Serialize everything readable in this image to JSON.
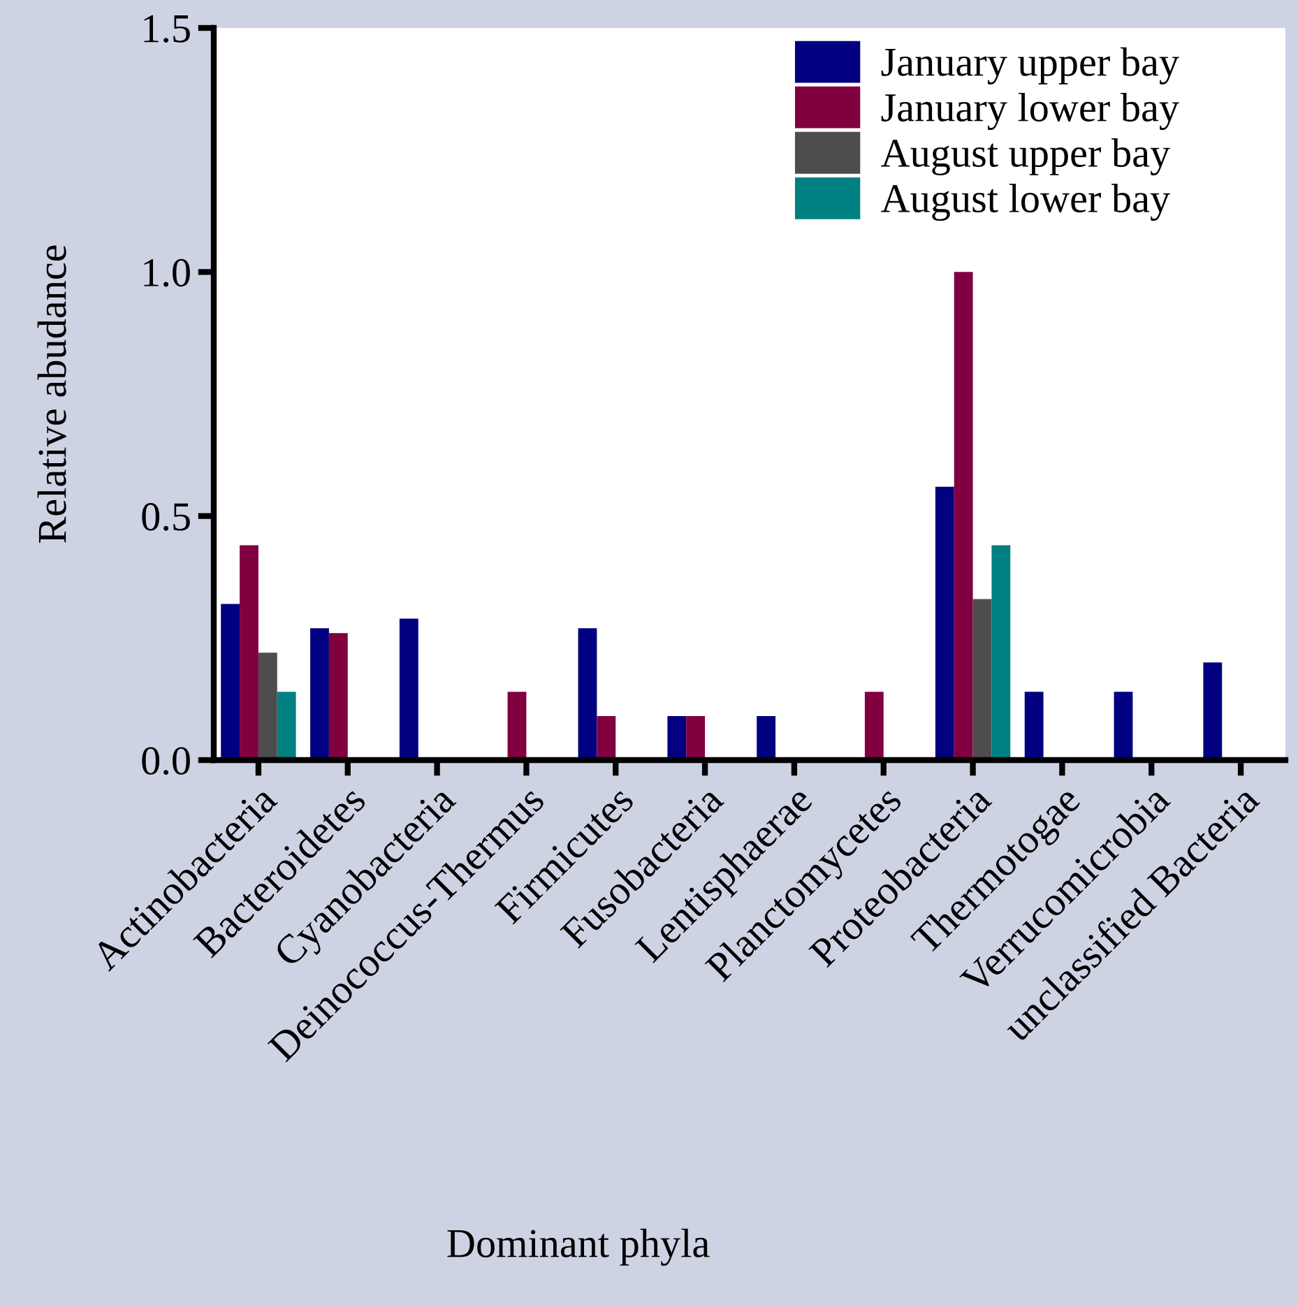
{
  "chart_data": {
    "type": "bar",
    "xlabel": "Dominant phyla",
    "ylabel": "Relative abudance",
    "categories": [
      "Actinobacteria",
      "Bacteroidetes",
      "Cyanobacteria",
      "Deinococcus-Thermus",
      "Firmicutes",
      "Fusobacteria",
      "Lentisphaerae",
      "Planctomycetes",
      "Proteobacteria",
      "Thermotogae",
      "Verrucomicrobia",
      "unclassified Bacteria"
    ],
    "series": [
      {
        "name": "January upper bay",
        "color": "#000080",
        "values": [
          0.32,
          0.27,
          0.29,
          null,
          0.27,
          0.09,
          0.09,
          null,
          0.56,
          0.14,
          0.14,
          0.2
        ]
      },
      {
        "name": "January lower bay",
        "color": "#800040",
        "values": [
          0.44,
          0.26,
          null,
          0.14,
          0.09,
          0.09,
          null,
          0.14,
          1.0,
          null,
          null,
          null
        ]
      },
      {
        "name": "August upper bay",
        "color": "#4d4d4d",
        "values": [
          0.22,
          null,
          null,
          null,
          null,
          null,
          null,
          null,
          0.33,
          null,
          null,
          null
        ]
      },
      {
        "name": "August lower bay",
        "color": "#008080",
        "values": [
          0.14,
          null,
          null,
          null,
          null,
          null,
          null,
          null,
          0.44,
          null,
          null,
          null
        ]
      }
    ],
    "ylim": [
      0,
      1.5
    ],
    "yticks": [
      {
        "value": 0,
        "label": "0.0"
      },
      {
        "value": 0.5,
        "label": "0.5"
      },
      {
        "value": 1.0,
        "label": "1.0"
      },
      {
        "value": 1.5,
        "label": "1.5"
      }
    ],
    "grid": false,
    "legend": "top right"
  }
}
